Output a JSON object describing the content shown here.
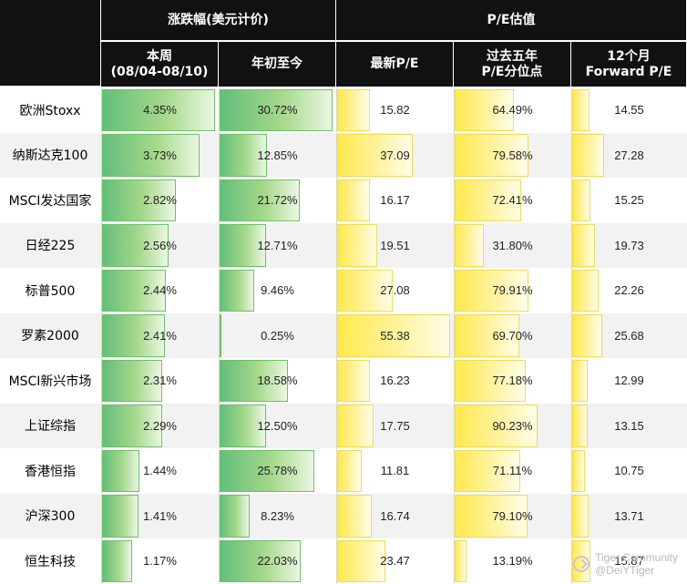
{
  "header": {
    "group_change": "涨跌幅(美元计价)",
    "group_pe": "P/E估值",
    "cols": [
      {
        "line1": "本周",
        "line2": "(08/04-08/10)"
      },
      {
        "line1": "年初至今",
        "line2": ""
      },
      {
        "line1": "最新P/E",
        "line2": ""
      },
      {
        "line1": "过去五年",
        "line2": "P/E分位点"
      },
      {
        "line1": "12个月",
        "line2": "Forward P/E"
      }
    ]
  },
  "chart_data": {
    "type": "table",
    "rows": [
      "欧洲Stoxx",
      "纳斯达克100",
      "MSCI发达国家",
      "日经225",
      "标普500",
      "罗素2000",
      "MSCI新兴市场",
      "上证综指",
      "香港恒指",
      "沪深300",
      "恒生科技"
    ],
    "columns": [
      {
        "key": "week_change",
        "label": "本周(08/04-08/10)",
        "values": [
          4.35,
          3.73,
          2.82,
          2.56,
          2.44,
          2.41,
          2.31,
          2.29,
          1.44,
          1.41,
          1.17
        ],
        "display": [
          "4.35%",
          "3.73%",
          "2.82%",
          "2.56%",
          "2.44%",
          "2.41%",
          "2.31%",
          "2.29%",
          "1.44%",
          "1.41%",
          "1.17%"
        ]
      },
      {
        "key": "ytd_change",
        "label": "年初至今",
        "values": [
          30.72,
          12.85,
          21.72,
          12.71,
          9.46,
          0.25,
          18.58,
          12.5,
          25.78,
          8.23,
          22.03
        ],
        "display": [
          "30.72%",
          "12.85%",
          "21.72%",
          "12.71%",
          "9.46%",
          "0.25%",
          "18.58%",
          "12.50%",
          "25.78%",
          "8.23%",
          "22.03%"
        ]
      },
      {
        "key": "latest_pe",
        "label": "最新P/E",
        "values": [
          15.82,
          37.09,
          16.17,
          19.51,
          27.08,
          55.38,
          16.23,
          17.75,
          11.81,
          16.74,
          23.47
        ],
        "display": [
          "15.82",
          "37.09",
          "16.17",
          "19.51",
          "27.08",
          "55.38",
          "16.23",
          "17.75",
          "11.81",
          "16.74",
          "23.47"
        ]
      },
      {
        "key": "pe_percentile_5y",
        "label": "过去五年P/E分位点",
        "values": [
          64.49,
          79.58,
          72.41,
          31.8,
          79.91,
          69.7,
          77.18,
          90.23,
          71.11,
          79.1,
          13.19
        ],
        "display": [
          "64.49%",
          "79.58%",
          "72.41%",
          "31.80%",
          "79.91%",
          "69.70%",
          "77.18%",
          "90.23%",
          "71.11%",
          "79.10%",
          "13.19%"
        ]
      },
      {
        "key": "forward_pe_12m",
        "label": "12个月Forward P/E",
        "values": [
          14.55,
          27.28,
          15.25,
          19.73,
          22.26,
          25.68,
          12.99,
          13.15,
          10.75,
          13.71,
          15.87
        ],
        "display": [
          "14.55",
          "27.28",
          "15.25",
          "19.73",
          "22.26",
          "25.68",
          "12.99",
          "13.15",
          "10.75",
          "13.71",
          "15.87"
        ]
      }
    ]
  },
  "colors": {
    "header_bg": "#111111",
    "change_bar": "#63be7b",
    "pe_bar": "#ffe94d"
  },
  "watermark": {
    "line1": "Tiger Community",
    "line2": "@DeiYTiger"
  }
}
